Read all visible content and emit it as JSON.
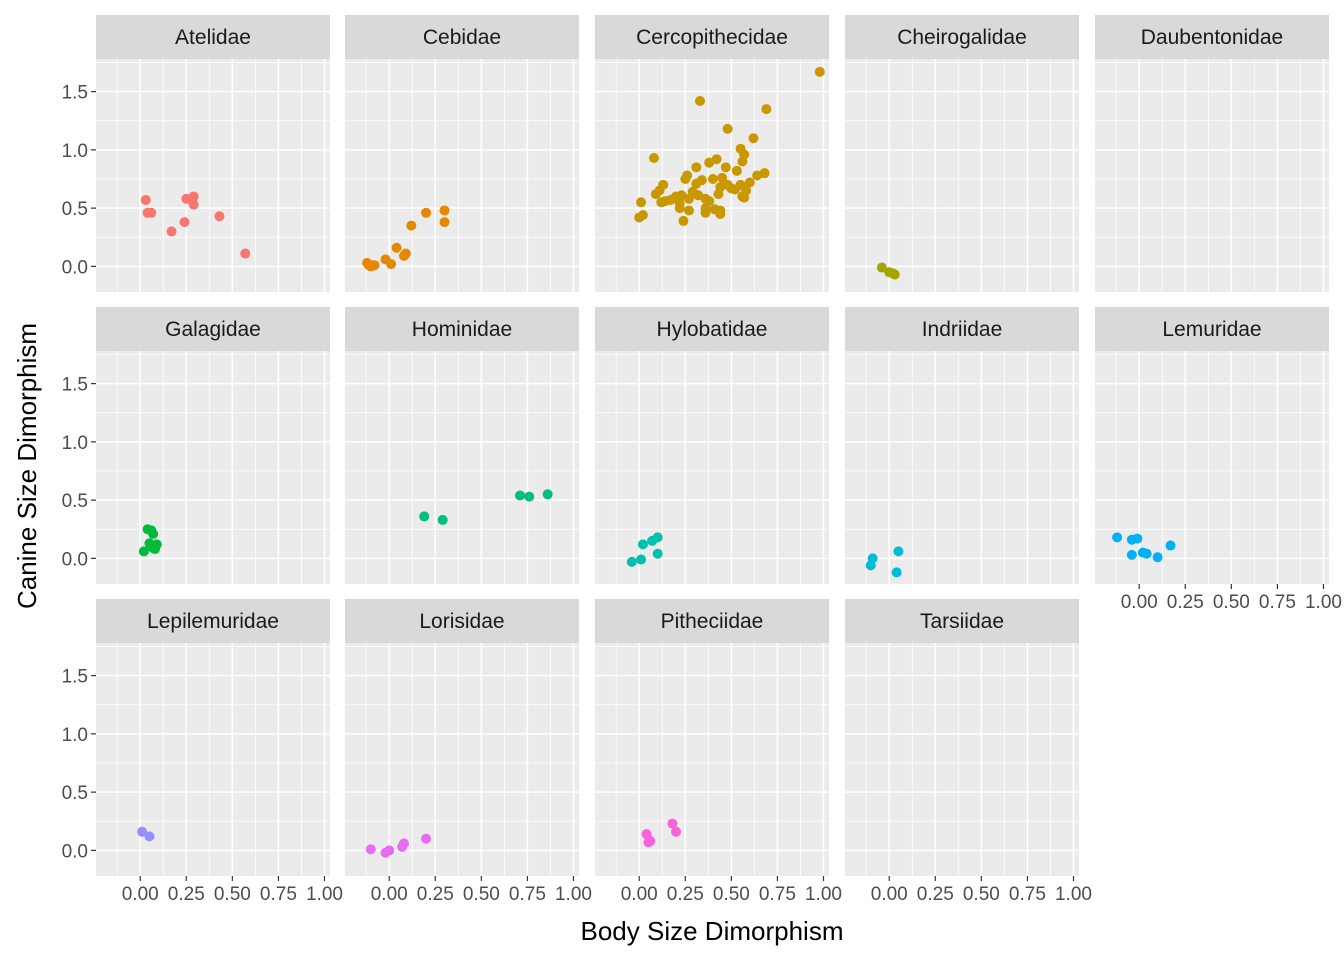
{
  "chart_data": {
    "type": "scatter",
    "facet": "wrap",
    "xlabel": "Body Size Dimorphism",
    "ylabel": "Canine Size Dimorphism",
    "xlim": [
      -0.24,
      1.03
    ],
    "ylim": [
      -0.22,
      1.78
    ],
    "x_ticks": [
      0,
      0.25,
      0.5,
      0.75,
      1.0
    ],
    "x_tick_labels": [
      "0.00",
      "0.25",
      "0.50",
      "0.75",
      "1.00"
    ],
    "y_ticks": [
      0,
      0.5,
      1.0,
      1.5
    ],
    "y_tick_labels": [
      "0.0",
      "0.5",
      "1.0",
      "1.5"
    ],
    "grid": true,
    "legend": "none",
    "panels": [
      {
        "name": "Atelidae",
        "color": "#F8766D",
        "points": [
          [
            0.03,
            0.57
          ],
          [
            0.04,
            0.46
          ],
          [
            0.06,
            0.46
          ],
          [
            0.17,
            0.3
          ],
          [
            0.24,
            0.38
          ],
          [
            0.25,
            0.58
          ],
          [
            0.28,
            0.57
          ],
          [
            0.29,
            0.6
          ],
          [
            0.29,
            0.53
          ],
          [
            0.43,
            0.43
          ],
          [
            0.57,
            0.11
          ]
        ]
      },
      {
        "name": "Cebidae",
        "color": "#E58700",
        "points": [
          [
            -0.12,
            0.03
          ],
          [
            -0.11,
            0.01
          ],
          [
            -0.1,
            0.0
          ],
          [
            -0.09,
            0.01
          ],
          [
            -0.08,
            0.01
          ],
          [
            -0.02,
            0.06
          ],
          [
            0.01,
            0.02
          ],
          [
            0.04,
            0.16
          ],
          [
            0.08,
            0.09
          ],
          [
            0.09,
            0.11
          ],
          [
            0.12,
            0.35
          ],
          [
            0.2,
            0.46
          ],
          [
            0.3,
            0.48
          ],
          [
            0.3,
            0.38
          ]
        ]
      },
      {
        "name": "Cercopithecidae",
        "color": "#C99800",
        "points": [
          [
            0.98,
            1.67
          ],
          [
            0.33,
            1.42
          ],
          [
            0.69,
            1.35
          ],
          [
            0.48,
            1.18
          ],
          [
            0.62,
            1.1
          ],
          [
            0.55,
            1.01
          ],
          [
            0.57,
            0.96
          ],
          [
            0.56,
            0.9
          ],
          [
            0.38,
            0.89
          ],
          [
            0.42,
            0.92
          ],
          [
            0.08,
            0.93
          ],
          [
            0.31,
            0.85
          ],
          [
            0.47,
            0.85
          ],
          [
            0.53,
            0.82
          ],
          [
            0.64,
            0.78
          ],
          [
            0.68,
            0.8
          ],
          [
            0.26,
            0.78
          ],
          [
            0.25,
            0.75
          ],
          [
            0.34,
            0.74
          ],
          [
            0.31,
            0.71
          ],
          [
            0.4,
            0.75
          ],
          [
            0.45,
            0.76
          ],
          [
            0.6,
            0.72
          ],
          [
            0.55,
            0.7
          ],
          [
            0.48,
            0.7
          ],
          [
            0.13,
            0.7
          ],
          [
            0.11,
            0.65
          ],
          [
            0.2,
            0.6
          ],
          [
            0.23,
            0.61
          ],
          [
            0.29,
            0.64
          ],
          [
            0.44,
            0.68
          ],
          [
            0.5,
            0.67
          ],
          [
            0.52,
            0.66
          ],
          [
            0.58,
            0.65
          ],
          [
            0.09,
            0.62
          ],
          [
            0.14,
            0.56
          ],
          [
            0.17,
            0.57
          ],
          [
            0.27,
            0.58
          ],
          [
            0.32,
            0.61
          ],
          [
            0.36,
            0.58
          ],
          [
            0.43,
            0.62
          ],
          [
            0.56,
            0.6
          ],
          [
            0.57,
            0.59
          ],
          [
            0.38,
            0.56
          ],
          [
            0.12,
            0.55
          ],
          [
            0.22,
            0.54
          ],
          [
            0.01,
            0.55
          ],
          [
            0.36,
            0.5
          ],
          [
            0.41,
            0.49
          ],
          [
            0.44,
            0.48
          ],
          [
            0.44,
            0.45
          ],
          [
            0.36,
            0.46
          ],
          [
            0.27,
            0.48
          ],
          [
            0.22,
            0.5
          ],
          [
            0.02,
            0.44
          ],
          [
            0.0,
            0.42
          ],
          [
            0.24,
            0.39
          ]
        ]
      },
      {
        "name": "Cheirogalidae",
        "color": "#A3A500",
        "points": [
          [
            -0.04,
            -0.01
          ],
          [
            0.0,
            -0.05
          ],
          [
            0.02,
            -0.06
          ],
          [
            0.03,
            -0.07
          ]
        ]
      },
      {
        "name": "Daubentonidae",
        "color": "#6BB100",
        "points": []
      },
      {
        "name": "Galagidae",
        "color": "#00BA38",
        "points": [
          [
            0.02,
            0.06
          ],
          [
            0.04,
            0.25
          ],
          [
            0.06,
            0.24
          ],
          [
            0.07,
            0.21
          ],
          [
            0.05,
            0.13
          ],
          [
            0.06,
            0.1
          ],
          [
            0.07,
            0.09
          ],
          [
            0.08,
            0.1
          ],
          [
            0.09,
            0.12
          ],
          [
            0.08,
            0.08
          ]
        ]
      },
      {
        "name": "Hominidae",
        "color": "#00BF7D",
        "points": [
          [
            0.19,
            0.36
          ],
          [
            0.29,
            0.33
          ],
          [
            0.71,
            0.54
          ],
          [
            0.76,
            0.53
          ],
          [
            0.86,
            0.55
          ]
        ]
      },
      {
        "name": "Hylobatidae",
        "color": "#00C0AF",
        "points": [
          [
            -0.04,
            -0.03
          ],
          [
            0.01,
            -0.01
          ],
          [
            0.02,
            0.12
          ],
          [
            0.07,
            0.15
          ],
          [
            0.1,
            0.18
          ],
          [
            0.1,
            0.04
          ]
        ]
      },
      {
        "name": "Indriidae",
        "color": "#00BCD8",
        "points": [
          [
            -0.09,
            0.0
          ],
          [
            -0.1,
            -0.06
          ],
          [
            0.05,
            0.06
          ],
          [
            0.04,
            -0.12
          ]
        ]
      },
      {
        "name": "Lemuridae",
        "color": "#00B0F6",
        "points": [
          [
            -0.12,
            0.18
          ],
          [
            -0.04,
            0.16
          ],
          [
            -0.01,
            0.17
          ],
          [
            -0.04,
            0.03
          ],
          [
            0.02,
            0.05
          ],
          [
            0.04,
            0.04
          ],
          [
            0.1,
            0.01
          ],
          [
            0.17,
            0.11
          ]
        ]
      },
      {
        "name": "Lepilemuridae",
        "color": "#9590FF",
        "points": [
          [
            0.01,
            0.16
          ],
          [
            0.05,
            0.12
          ]
        ]
      },
      {
        "name": "Lorisidae",
        "color": "#E76BF3",
        "points": [
          [
            -0.1,
            0.01
          ],
          [
            -0.02,
            -0.02
          ],
          [
            0.0,
            0.0
          ],
          [
            0.07,
            0.03
          ],
          [
            0.08,
            0.06
          ],
          [
            0.2,
            0.1
          ]
        ]
      },
      {
        "name": "Pitheciidae",
        "color": "#FA62DB",
        "points": [
          [
            0.04,
            0.14
          ],
          [
            0.05,
            0.07
          ],
          [
            0.06,
            0.08
          ],
          [
            0.18,
            0.23
          ],
          [
            0.2,
            0.16
          ]
        ]
      },
      {
        "name": "Tarsiidae",
        "color": "#FF62BC",
        "points": []
      }
    ]
  }
}
